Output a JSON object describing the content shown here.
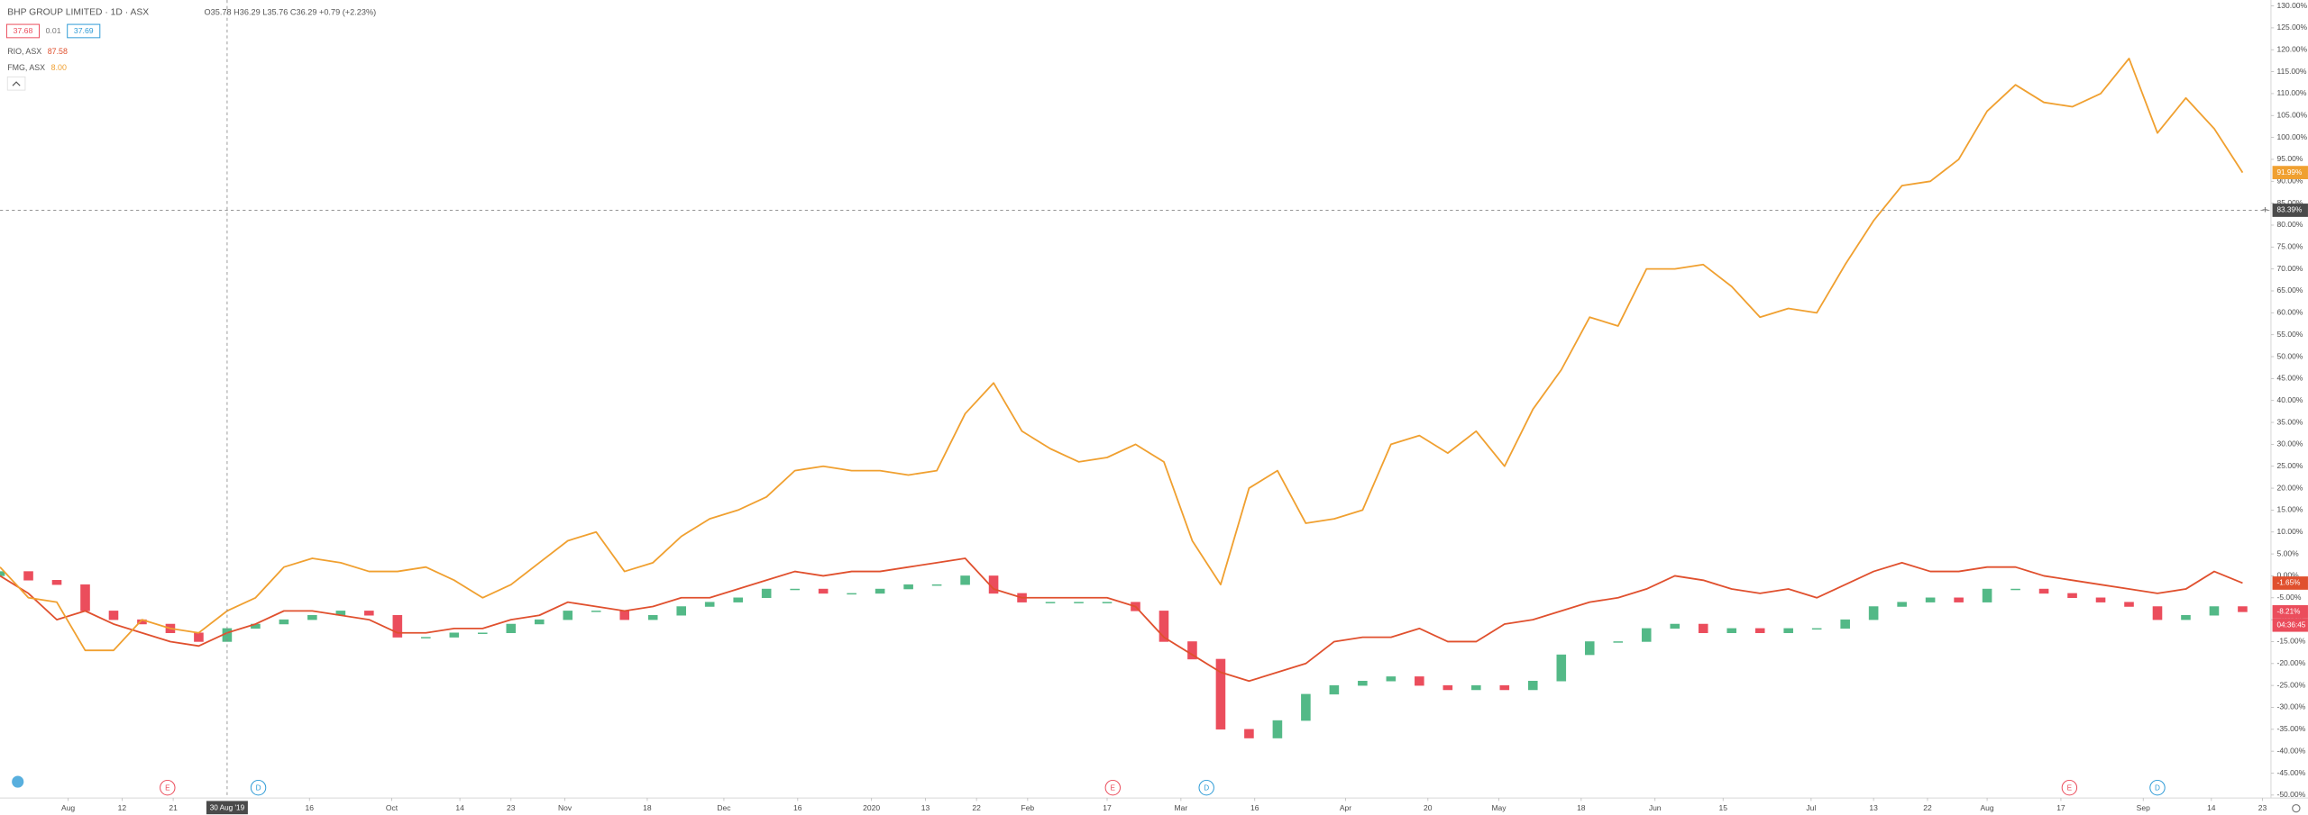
{
  "header": {
    "title": "BHP GROUP LIMITED · 1D · ASX",
    "ohlc": "O35.78 H36.29 L35.76 C36.29 +0.79 (+2.23%)",
    "bid": "37.68",
    "spread": "0.01",
    "ask": "37.69"
  },
  "chart_data": {
    "type": "line",
    "candle_series": {
      "name": "BHP",
      "up_color": "#53b987",
      "down_color": "#eb4d5c",
      "open": [
        0,
        1,
        -1,
        -2,
        -8,
        -10,
        -11,
        -13,
        -15,
        -12,
        -11,
        -10,
        -9,
        -8,
        -9,
        -14,
        -14,
        -13,
        -13,
        -11,
        -10,
        -8,
        -8,
        -10,
        -9,
        -7,
        -6,
        -5,
        -3,
        -3,
        -4,
        -4,
        -3,
        -2,
        -2,
        0,
        -4,
        -6,
        -6,
        -6,
        -6,
        -8,
        -15,
        -19,
        -35,
        -37,
        -33,
        -27,
        -25,
        -24,
        -23,
        -25,
        -26,
        -25,
        -26,
        -24,
        -18,
        -15,
        -15,
        -12,
        -11,
        -13,
        -12,
        -13,
        -12,
        -12,
        -10,
        -7,
        -6,
        -5,
        -6,
        -3,
        -3,
        -4,
        -5,
        -6,
        -7,
        -10,
        -9,
        -7
      ],
      "close": [
        1,
        -1,
        -2,
        -8,
        -10,
        -11,
        -13,
        -15,
        -12,
        -11,
        -10,
        -9,
        -8,
        -9,
        -14,
        -14,
        -13,
        -13,
        -11,
        -10,
        -8,
        -8,
        -10,
        -9,
        -7,
        -6,
        -5,
        -3,
        -3,
        -4,
        -4,
        -3,
        -2,
        -2,
        0,
        -4,
        -6,
        -6,
        -6,
        -6,
        -8,
        -15,
        -19,
        -35,
        -37,
        -33,
        -27,
        -25,
        -24,
        -23,
        -25,
        -26,
        -25,
        -26,
        -24,
        -18,
        -15,
        -15,
        -12,
        -11,
        -13,
        -12,
        -13,
        -12,
        -12,
        -10,
        -7,
        -6,
        -5,
        -6,
        -3,
        -3,
        -4,
        -5,
        -6,
        -7,
        -10,
        -9,
        -7,
        -8.21
      ]
    },
    "series": [
      {
        "name": "RIO, ASX",
        "legend_value": "87.58",
        "color": "#e0502e",
        "values": [
          0,
          -4,
          -10,
          -8,
          -11,
          -13,
          -15,
          -16,
          -13,
          -11,
          -8,
          -8,
          -9,
          -10,
          -13,
          -13,
          -12,
          -12,
          -10,
          -9,
          -6,
          -7,
          -8,
          -7,
          -5,
          -5,
          -3,
          -1,
          1,
          0,
          1,
          1,
          2,
          3,
          4,
          -3,
          -5,
          -5,
          -5,
          -5,
          -7,
          -14,
          -18,
          -22,
          -24,
          -22,
          -20,
          -15,
          -14,
          -14,
          -12,
          -15,
          -15,
          -11,
          -10,
          -8,
          -6,
          -5,
          -3,
          0,
          -1,
          -3,
          -4,
          -3,
          -5,
          -2,
          1,
          3,
          1,
          1,
          2,
          2,
          0,
          -1,
          -2,
          -3,
          -4,
          -3,
          1,
          -1.65
        ]
      },
      {
        "name": "FMG, ASX",
        "legend_value": "8.00",
        "color": "#f0a030",
        "values": [
          2,
          -5,
          -6,
          -17,
          -17,
          -10,
          -12,
          -13,
          -8,
          -5,
          2,
          4,
          3,
          1,
          1,
          2,
          -1,
          -5,
          -2,
          3,
          8,
          10,
          1,
          3,
          9,
          13,
          15,
          18,
          24,
          25,
          24,
          24,
          23,
          24,
          37,
          44,
          33,
          29,
          26,
          27,
          30,
          26,
          8,
          -2,
          20,
          24,
          12,
          13,
          15,
          30,
          32,
          28,
          33,
          25,
          38,
          47,
          59,
          57,
          70,
          70,
          71,
          66,
          59,
          61,
          60,
          71,
          81,
          89,
          90,
          95,
          106,
          112,
          108,
          107,
          110,
          118,
          101,
          109,
          102,
          91.99
        ]
      }
    ],
    "last_labels": [
      {
        "value": 91.99,
        "label": "91.99%",
        "color": "#f0a030"
      },
      {
        "value": -1.65,
        "label": "-1.65%",
        "color": "#e0502e"
      },
      {
        "value": -8.21,
        "label": "-8.21%",
        "color": "#eb4d5c",
        "sub": "04:36:45"
      }
    ],
    "crosshair": {
      "x": 8,
      "x_label": "30 Aug '19",
      "y": 83.39,
      "y_label": "83.39%"
    },
    "events": [
      {
        "x": 5.9,
        "label": "E",
        "color": "#eb4d5c"
      },
      {
        "x": 9.1,
        "label": "D",
        "color": "#2e9bd6"
      },
      {
        "x": 39.2,
        "label": "E",
        "color": "#eb4d5c"
      },
      {
        "x": 42.5,
        "label": "D",
        "color": "#2e9bd6"
      },
      {
        "x": 72.9,
        "label": "E",
        "color": "#eb4d5c"
      },
      {
        "x": 76,
        "label": "D",
        "color": "#2e9bd6"
      }
    ],
    "xlim": [
      0,
      80
    ],
    "xticks": [
      {
        "value": 2.4,
        "label": "Aug"
      },
      {
        "value": 4.3,
        "label": "12"
      },
      {
        "value": 6.1,
        "label": "21"
      },
      {
        "value": 10.9,
        "label": "16"
      },
      {
        "value": 13.8,
        "label": "Oct"
      },
      {
        "value": 16.2,
        "label": "14"
      },
      {
        "value": 18,
        "label": "23"
      },
      {
        "value": 19.9,
        "label": "Nov"
      },
      {
        "value": 22.8,
        "label": "18"
      },
      {
        "value": 25.5,
        "label": "Dec"
      },
      {
        "value": 28.1,
        "label": "16"
      },
      {
        "value": 30.7,
        "label": "2020"
      },
      {
        "value": 32.6,
        "label": "13"
      },
      {
        "value": 34.4,
        "label": "22"
      },
      {
        "value": 36.2,
        "label": "Feb"
      },
      {
        "value": 39,
        "label": "17"
      },
      {
        "value": 41.6,
        "label": "Mar"
      },
      {
        "value": 44.2,
        "label": "16"
      },
      {
        "value": 47.4,
        "label": "Apr"
      },
      {
        "value": 50.3,
        "label": "20"
      },
      {
        "value": 52.8,
        "label": "May"
      },
      {
        "value": 55.7,
        "label": "18"
      },
      {
        "value": 58.3,
        "label": "Jun"
      },
      {
        "value": 60.7,
        "label": "15"
      },
      {
        "value": 63.8,
        "label": "Jul"
      },
      {
        "value": 66,
        "label": "13"
      },
      {
        "value": 67.9,
        "label": "22"
      },
      {
        "value": 70,
        "label": "Aug"
      },
      {
        "value": 72.6,
        "label": "17"
      },
      {
        "value": 75.5,
        "label": "Sep"
      },
      {
        "value": 77.9,
        "label": "14"
      },
      {
        "value": 79.7,
        "label": "23"
      }
    ],
    "ylim": [
      -50,
      130
    ],
    "yticks": [
      {
        "value": -50,
        "label": "-50.00%"
      },
      {
        "value": -45,
        "label": "-45.00%"
      },
      {
        "value": -40,
        "label": "-40.00%"
      },
      {
        "value": -35,
        "label": "-35.00%"
      },
      {
        "value": -30,
        "label": "-30.00%"
      },
      {
        "value": -25,
        "label": "-25.00%"
      },
      {
        "value": -20,
        "label": "-20.00%"
      },
      {
        "value": -15,
        "label": "-15.00%"
      },
      {
        "value": -10,
        "label": "-10.00%"
      },
      {
        "value": -5,
        "label": "-5.00%"
      },
      {
        "value": 0,
        "label": "0.00%"
      },
      {
        "value": 5,
        "label": "5.00%"
      },
      {
        "value": 10,
        "label": "10.00%"
      },
      {
        "value": 15,
        "label": "15.00%"
      },
      {
        "value": 20,
        "label": "20.00%"
      },
      {
        "value": 25,
        "label": "25.00%"
      },
      {
        "value": 30,
        "label": "30.00%"
      },
      {
        "value": 35,
        "label": "35.00%"
      },
      {
        "value": 40,
        "label": "40.00%"
      },
      {
        "value": 45,
        "label": "45.00%"
      },
      {
        "value": 50,
        "label": "50.00%"
      },
      {
        "value": 55,
        "label": "55.00%"
      },
      {
        "value": 60,
        "label": "60.00%"
      },
      {
        "value": 65,
        "label": "65.00%"
      },
      {
        "value": 70,
        "label": "70.00%"
      },
      {
        "value": 75,
        "label": "75.00%"
      },
      {
        "value": 80,
        "label": "80.00%"
      },
      {
        "value": 85,
        "label": "85.00%"
      },
      {
        "value": 90,
        "label": "90.00%"
      },
      {
        "value": 95,
        "label": "95.00%"
      },
      {
        "value": 100,
        "label": "100.00%"
      },
      {
        "value": 105,
        "label": "105.00%"
      },
      {
        "value": 110,
        "label": "110.00%"
      },
      {
        "value": 115,
        "label": "115.00%"
      },
      {
        "value": 120,
        "label": "120.00%"
      },
      {
        "value": 125,
        "label": "125.00%"
      },
      {
        "value": 130,
        "label": "130.00%"
      }
    ]
  }
}
